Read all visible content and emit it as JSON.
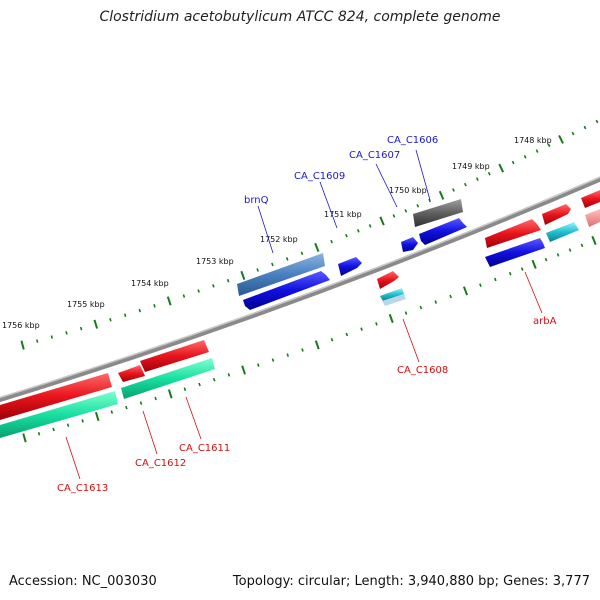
{
  "title": "Clostridium acetobutylicum ATCC 824, complete genome",
  "footer": {
    "accession": "Accession: NC_003030",
    "summary": "Topology: circular; Length: 3,940,880 bp; Genes: 3,777"
  },
  "colors": {
    "forward_cds": "#e8141c",
    "reverse_cds": "#1010e0",
    "rna_green": "#18e0a0",
    "steel_blue": "#4a80c0",
    "gray_gene": "#606060",
    "cyan_gene": "#20c0d0",
    "tick_green": "#1a7a1a",
    "label_blue": "#1a1acc",
    "label_red": "#d01010"
  },
  "scale": {
    "ticks": [
      "1748 kbp",
      "1749 kbp",
      "1750 kbp",
      "1751 kbp",
      "1752 kbp",
      "1753 kbp",
      "1754 kbp",
      "1755 kbp",
      "1756 kbp"
    ]
  },
  "gene_labels": {
    "CA_C1606": "CA_C1606",
    "CA_C1607": "CA_C1607",
    "CA_C1609": "CA_C1609",
    "brnQ": "brnQ",
    "arbA": "arbA",
    "CA_C1608": "CA_C1608",
    "CA_C1611": "CA_C1611",
    "CA_C1612": "CA_C1612",
    "CA_C1613": "CA_C1613"
  }
}
